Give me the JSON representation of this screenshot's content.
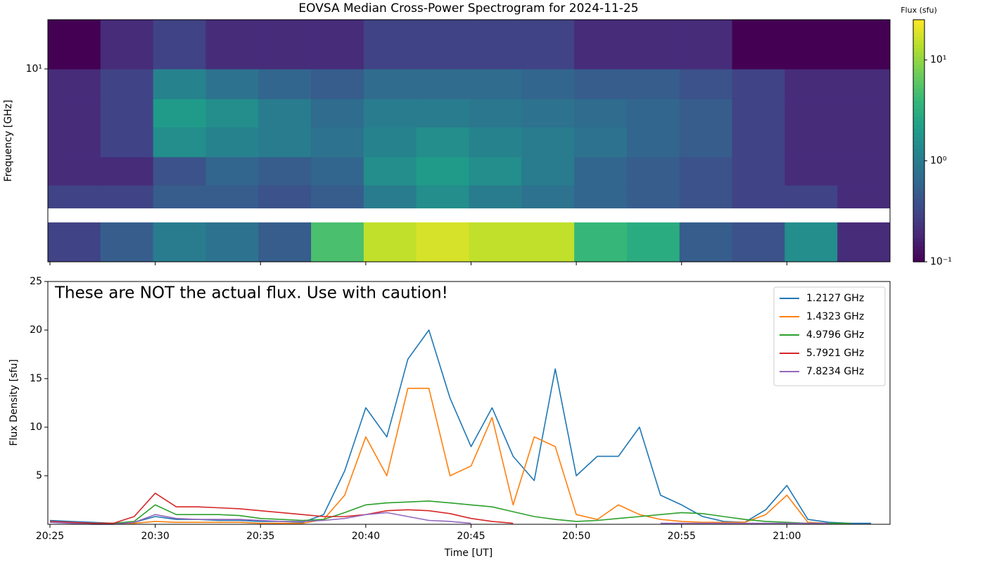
{
  "chart_data": [
    {
      "type": "heatmap",
      "title": "EOVSA Median Cross-Power Spectrogram for 2024-11-25",
      "y_label": "Frequency [GHz]",
      "y_log": true,
      "xlim": [
        24.9,
        64.9
      ],
      "ylim": [
        1,
        18
      ],
      "yticks": [
        {
          "value": 10,
          "label": "10¹"
        }
      ],
      "x_bins": [
        24.9,
        27.4,
        29.9,
        32.4,
        34.9,
        37.4,
        39.9,
        42.4,
        44.9,
        47.4,
        49.9,
        52.4,
        54.9,
        57.4,
        59.9,
        62.4,
        64.9
      ],
      "y_bins": [
        1,
        1.6,
        1.9,
        2.5,
        3.5,
        5,
        7,
        10,
        18
      ],
      "values": [
        [
          0.3,
          0.5,
          1,
          0.8,
          0.5,
          5,
          15,
          18,
          15,
          15,
          4,
          3,
          0.5,
          0.4,
          1.5,
          0.2
        ],
        [
          null,
          null,
          null,
          null,
          null,
          null,
          null,
          null,
          null,
          null,
          null,
          null,
          null,
          null,
          null,
          null
        ],
        [
          0.3,
          0.3,
          0.5,
          0.5,
          0.4,
          0.5,
          1,
          1.5,
          1,
          0.8,
          0.6,
          0.5,
          0.4,
          0.3,
          0.3,
          0.2
        ],
        [
          0.2,
          0.2,
          0.4,
          0.6,
          0.5,
          0.6,
          1.5,
          2,
          1.5,
          1,
          0.6,
          0.5,
          0.4,
          0.3,
          0.2,
          0.2
        ],
        [
          0.2,
          0.3,
          1.5,
          1.2,
          1,
          0.8,
          1.2,
          1.5,
          1.2,
          1,
          0.8,
          0.6,
          0.5,
          0.3,
          0.2,
          0.2
        ],
        [
          0.2,
          0.3,
          2,
          1.5,
          1,
          0.7,
          1,
          1,
          0.9,
          0.8,
          0.7,
          0.6,
          0.5,
          0.3,
          0.2,
          0.2
        ],
        [
          0.2,
          0.3,
          1.2,
          0.8,
          0.6,
          0.5,
          0.7,
          0.7,
          0.7,
          0.6,
          0.5,
          0.5,
          0.4,
          0.3,
          0.2,
          0.2
        ],
        [
          0.1,
          0.2,
          0.3,
          0.2,
          0.2,
          0.2,
          0.3,
          0.3,
          0.3,
          0.3,
          0.2,
          0.2,
          0.2,
          0.1,
          0.1,
          0.1
        ]
      ],
      "colormap": "viridis",
      "colorbar_label": "Flux (sfu)",
      "clim": [
        0.1,
        25
      ],
      "cticks": [
        {
          "value": 0.1,
          "label": "10⁻¹"
        },
        {
          "value": 1,
          "label": "10⁰"
        },
        {
          "value": 10,
          "label": "10¹"
        }
      ]
    },
    {
      "type": "line",
      "annotation": "These are NOT the actual flux. Use with caution!",
      "x_label": "Time [UT]",
      "y_label": "Flux Density [sfu]",
      "xlim": [
        24.9,
        64.9
      ],
      "ylim": [
        0,
        25
      ],
      "xticks": [
        {
          "value": 25,
          "label": "20:25"
        },
        {
          "value": 30,
          "label": "20:30"
        },
        {
          "value": 35,
          "label": "20:35"
        },
        {
          "value": 40,
          "label": "20:40"
        },
        {
          "value": 45,
          "label": "20:45"
        },
        {
          "value": 50,
          "label": "20:50"
        },
        {
          "value": 55,
          "label": "20:55"
        },
        {
          "value": 60,
          "label": "21:00"
        }
      ],
      "yticks": [
        5,
        10,
        15,
        20,
        25
      ],
      "legend": "upper right",
      "x": [
        25,
        26,
        27,
        28,
        29,
        30,
        31,
        32,
        33,
        34,
        35,
        36,
        37,
        38,
        39,
        40,
        41,
        42,
        43,
        44,
        45,
        46,
        47,
        48,
        49,
        50,
        51,
        52,
        53,
        54,
        55,
        56,
        57,
        58,
        59,
        60,
        61,
        62,
        63,
        64
      ],
      "series": [
        {
          "name": "1.2127 GHz",
          "color": "#1f77b4",
          "values": [
            0.4,
            0.3,
            0.2,
            0.1,
            0.2,
            0.8,
            0.5,
            0.5,
            0.4,
            0.4,
            0.3,
            0.3,
            0.2,
            1.0,
            5.5,
            12,
            9,
            17,
            20,
            13,
            8,
            12,
            7,
            4.5,
            16,
            5,
            7,
            7,
            10,
            3,
            2,
            0.8,
            0.3,
            0.2,
            1.5,
            4,
            0.5,
            0.2,
            0.1,
            0.1
          ]
        },
        {
          "name": "1.4323 GHz",
          "color": "#ff7f0e",
          "values": [
            0.2,
            0.2,
            0.1,
            0.1,
            0.1,
            0.3,
            0.2,
            0.2,
            0.2,
            0.2,
            0.1,
            0.1,
            0.1,
            0.5,
            3,
            9,
            5,
            14,
            14,
            5,
            6,
            11,
            2,
            9,
            8,
            1,
            0.5,
            2,
            1,
            0.5,
            0.3,
            0.2,
            0.2,
            0.2,
            1,
            3,
            0.2,
            0.1,
            null,
            null
          ]
        },
        {
          "name": "4.9796 GHz",
          "color": "#2ca02c",
          "values": [
            0.2,
            0.2,
            0.1,
            0.1,
            0.3,
            2,
            1,
            1,
            1,
            0.9,
            0.6,
            0.5,
            0.4,
            0.5,
            1.2,
            2,
            2.2,
            2.3,
            2.4,
            2.2,
            2,
            1.8,
            1.3,
            0.8,
            0.5,
            0.3,
            0.4,
            0.6,
            0.8,
            1,
            1.2,
            1.1,
            0.8,
            0.5,
            0.3,
            0.2,
            0.1,
            0.1,
            0.1,
            null
          ]
        },
        {
          "name": "5.7921 GHz",
          "color": "#d62728",
          "values": [
            0.3,
            0.2,
            0.1,
            0.1,
            0.8,
            3.2,
            1.8,
            1.8,
            1.7,
            1.6,
            1.4,
            1.2,
            1,
            0.8,
            0.8,
            1,
            1.4,
            1.5,
            1.4,
            1.1,
            0.6,
            0.3,
            0.1,
            null,
            null,
            null,
            null,
            null,
            null,
            null,
            null,
            null,
            null,
            null,
            null,
            null,
            null,
            null,
            null,
            null
          ]
        },
        {
          "name": "7.8234 GHz",
          "color": "#9467bd",
          "values": [
            0.2,
            0.1,
            0,
            0,
            0.2,
            1,
            0.6,
            0.5,
            0.5,
            0.5,
            0.4,
            0.3,
            0.3,
            0.4,
            0.6,
            1,
            1.2,
            0.8,
            0.4,
            0.3,
            0.1,
            null,
            null,
            null,
            null,
            null,
            null,
            null,
            null,
            0.1,
            0.1,
            0.1,
            0.1,
            0.1,
            0.1,
            0.1,
            0.1,
            0.1,
            null,
            null
          ]
        }
      ]
    }
  ]
}
